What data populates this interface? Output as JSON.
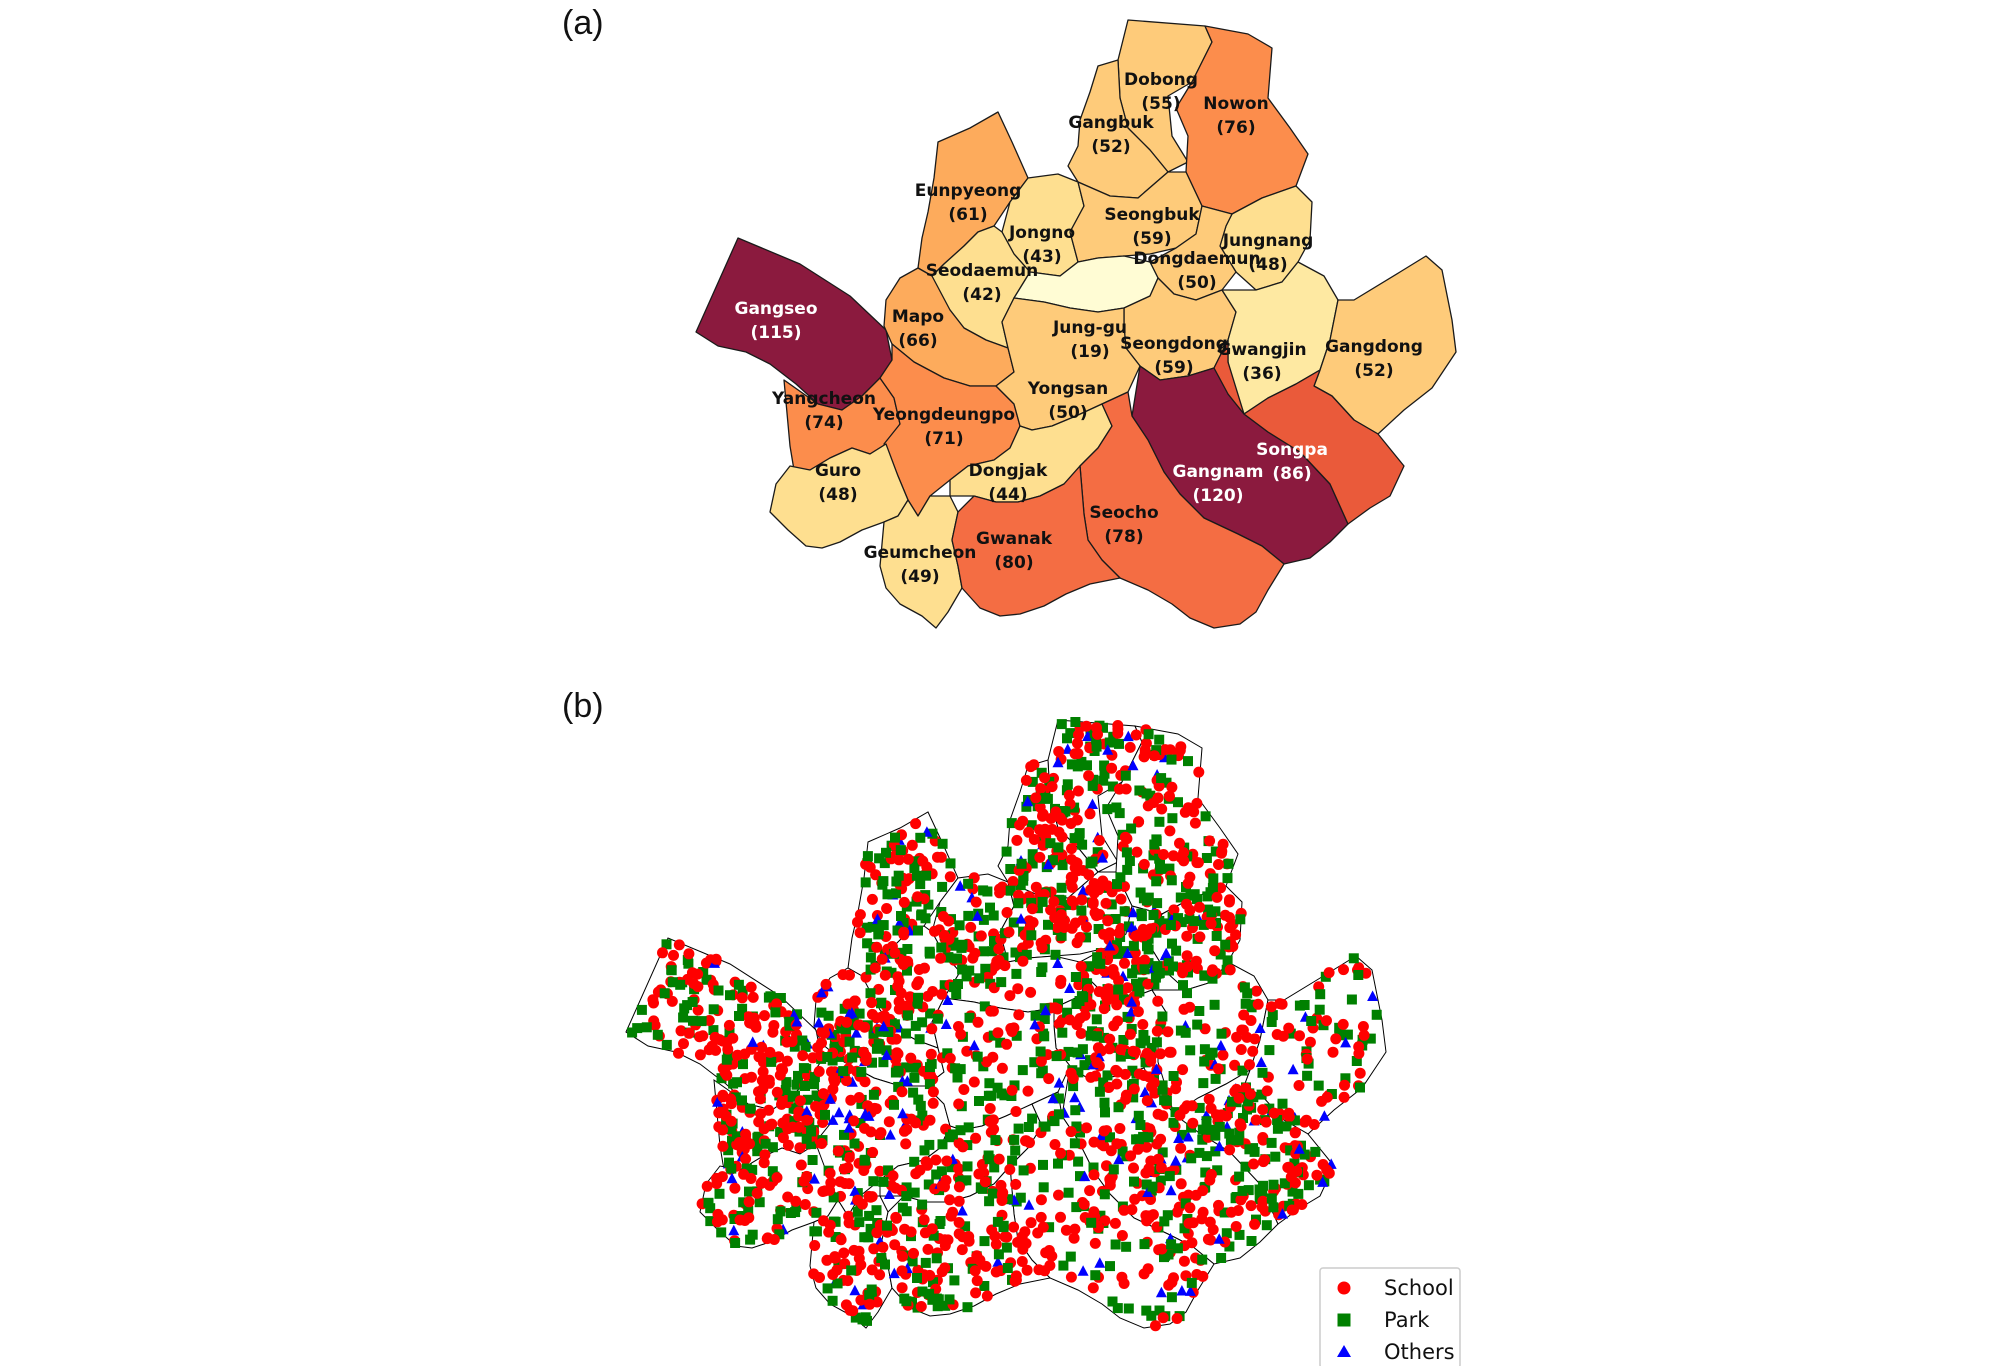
{
  "panel_a": {
    "label": "(a)",
    "colors": {
      "c19": "#fffcd4",
      "c36": "#fee9a2",
      "c40": "#fedf90",
      "c50": "#fecb7a",
      "c60": "#fdab5c",
      "c70": "#fc8d4c",
      "c80": "#f46d43",
      "c86": "#ea5a3a",
      "c110": "#8b1a3e",
      "border": "#1a1a1a"
    },
    "districts": [
      {
        "name": "Dobong",
        "count": "(55)",
        "value": 55
      },
      {
        "name": "Nowon",
        "count": "(76)",
        "value": 76
      },
      {
        "name": "Gangbuk",
        "count": "(52)",
        "value": 52
      },
      {
        "name": "Eunpyeong",
        "count": "(61)",
        "value": 61
      },
      {
        "name": "Jongno",
        "count": "(43)",
        "value": 43
      },
      {
        "name": "Seongbuk",
        "count": "(59)",
        "value": 59
      },
      {
        "name": "Jungnang",
        "count": "(48)",
        "value": 48
      },
      {
        "name": "Seodaemun",
        "count": "(42)",
        "value": 42
      },
      {
        "name": "Dongdaemun",
        "count": "(50)",
        "value": 50
      },
      {
        "name": "Gangseo",
        "count": "(115)",
        "value": 115
      },
      {
        "name": "Mapo",
        "count": "(66)",
        "value": 66
      },
      {
        "name": "Jung-gu",
        "count": "(19)",
        "value": 19
      },
      {
        "name": "Seongdong",
        "count": "(59)",
        "value": 59
      },
      {
        "name": "Gwangjin",
        "count": "(36)",
        "value": 36
      },
      {
        "name": "Gangdong",
        "count": "(52)",
        "value": 52
      },
      {
        "name": "Yangcheon",
        "count": "(74)",
        "value": 74
      },
      {
        "name": "Yeongdeungpo",
        "count": "(71)",
        "value": 71
      },
      {
        "name": "Yongsan",
        "count": "(50)",
        "value": 50
      },
      {
        "name": "Gangnam",
        "count": "(120)",
        "value": 120
      },
      {
        "name": "Songpa",
        "count": "(86)",
        "value": 86
      },
      {
        "name": "Guro",
        "count": "(48)",
        "value": 48
      },
      {
        "name": "Dongjak",
        "count": "(44)",
        "value": 44
      },
      {
        "name": "Seocho",
        "count": "(78)",
        "value": 78
      },
      {
        "name": "Geumcheon",
        "count": "(49)",
        "value": 49
      },
      {
        "name": "Gwanak",
        "count": "(80)",
        "value": 80
      }
    ]
  },
  "panel_b": {
    "label": "(b)",
    "legend": [
      {
        "label": "School",
        "marker": "circle",
        "color": "#ff0000"
      },
      {
        "label": "Park",
        "marker": "square",
        "color": "#008000"
      },
      {
        "label": "Others",
        "marker": "triangle",
        "color": "#0000ff"
      }
    ]
  }
}
